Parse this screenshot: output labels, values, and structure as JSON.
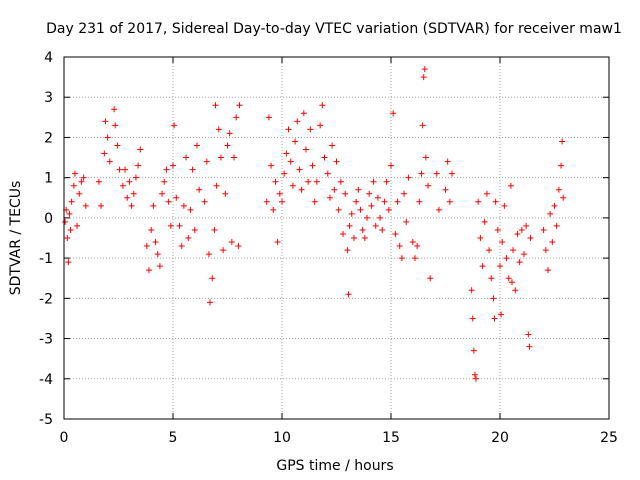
{
  "chart_data": {
    "type": "scatter",
    "title": "Day 231 of 2017, Sidereal Day-to-day VTEC variation (SDTVAR) for receiver maw1",
    "xlabel": "GPS time / hours",
    "ylabel": "SDTVAR / TECUs",
    "xlim": [
      0,
      25
    ],
    "ylim": [
      -5,
      4
    ],
    "xticks": [
      "0",
      "5",
      "10",
      "15",
      "20",
      "25"
    ],
    "yticks": [
      "4",
      "3",
      "2",
      "1",
      "0",
      "-1",
      "-2",
      "-3",
      "-4",
      "-5"
    ],
    "grid": true,
    "marker": "+",
    "series": [
      {
        "name": "SDTVAR",
        "color": "#ff0000",
        "points": [
          [
            0.05,
            -0.1
          ],
          [
            0.1,
            0.2
          ],
          [
            0.15,
            -0.5
          ],
          [
            0.2,
            -1.1
          ],
          [
            0.25,
            0.1
          ],
          [
            0.3,
            -0.3
          ],
          [
            0.35,
            0.4
          ],
          [
            0.45,
            0.8
          ],
          [
            0.5,
            1.1
          ],
          [
            0.6,
            -0.2
          ],
          [
            0.7,
            0.6
          ],
          [
            0.8,
            0.9
          ],
          [
            0.9,
            1.0
          ],
          [
            1.0,
            0.3
          ],
          [
            1.6,
            0.9
          ],
          [
            1.7,
            0.3
          ],
          [
            1.85,
            1.6
          ],
          [
            1.9,
            2.4
          ],
          [
            2.0,
            2.0
          ],
          [
            2.1,
            1.4
          ],
          [
            2.3,
            2.7
          ],
          [
            2.35,
            2.3
          ],
          [
            2.45,
            1.8
          ],
          [
            2.55,
            1.2
          ],
          [
            2.7,
            0.8
          ],
          [
            2.8,
            1.2
          ],
          [
            2.9,
            0.5
          ],
          [
            3.0,
            0.9
          ],
          [
            3.1,
            0.3
          ],
          [
            3.2,
            0.6
          ],
          [
            3.3,
            1.0
          ],
          [
            3.4,
            1.3
          ],
          [
            3.5,
            1.7
          ],
          [
            3.8,
            -0.7
          ],
          [
            3.9,
            -1.3
          ],
          [
            4.0,
            -0.3
          ],
          [
            4.1,
            0.3
          ],
          [
            4.2,
            -0.6
          ],
          [
            4.3,
            -0.9
          ],
          [
            4.4,
            -1.2
          ],
          [
            4.5,
            0.6
          ],
          [
            4.6,
            0.9
          ],
          [
            4.7,
            1.2
          ],
          [
            4.8,
            0.4
          ],
          [
            4.9,
            -0.2
          ],
          [
            5.0,
            1.3
          ],
          [
            5.05,
            2.3
          ],
          [
            5.15,
            0.5
          ],
          [
            5.3,
            -0.2
          ],
          [
            5.4,
            -0.7
          ],
          [
            5.5,
            0.3
          ],
          [
            5.6,
            1.5
          ],
          [
            5.7,
            -0.5
          ],
          [
            5.8,
            0.2
          ],
          [
            5.9,
            1.2
          ],
          [
            6.0,
            -0.3
          ],
          [
            6.1,
            1.8
          ],
          [
            6.2,
            0.7
          ],
          [
            6.45,
            0.4
          ],
          [
            6.55,
            1.4
          ],
          [
            6.65,
            -0.9
          ],
          [
            6.7,
            -2.1
          ],
          [
            6.8,
            -1.5
          ],
          [
            6.9,
            -0.3
          ],
          [
            6.95,
            2.8
          ],
          [
            7.0,
            0.8
          ],
          [
            7.1,
            2.2
          ],
          [
            7.2,
            1.5
          ],
          [
            7.3,
            -0.8
          ],
          [
            7.4,
            0.6
          ],
          [
            7.5,
            1.8
          ],
          [
            7.6,
            2.1
          ],
          [
            7.7,
            -0.6
          ],
          [
            7.8,
            1.5
          ],
          [
            7.9,
            2.5
          ],
          [
            8.0,
            -0.7
          ],
          [
            8.05,
            2.8
          ],
          [
            9.3,
            0.4
          ],
          [
            9.4,
            2.5
          ],
          [
            9.5,
            1.3
          ],
          [
            9.6,
            0.2
          ],
          [
            9.7,
            0.9
          ],
          [
            9.8,
            -0.6
          ],
          [
            9.9,
            0.6
          ],
          [
            10.0,
            0.4
          ],
          [
            10.1,
            1.1
          ],
          [
            10.2,
            1.6
          ],
          [
            10.3,
            2.2
          ],
          [
            10.4,
            1.4
          ],
          [
            10.5,
            0.8
          ],
          [
            10.6,
            1.9
          ],
          [
            10.7,
            2.4
          ],
          [
            10.8,
            1.2
          ],
          [
            10.9,
            0.7
          ],
          [
            11.0,
            2.6
          ],
          [
            11.1,
            1.7
          ],
          [
            11.2,
            0.9
          ],
          [
            11.3,
            2.2
          ],
          [
            11.4,
            1.3
          ],
          [
            11.5,
            0.4
          ],
          [
            11.6,
            0.9
          ],
          [
            11.75,
            2.3
          ],
          [
            11.85,
            2.8
          ],
          [
            11.95,
            1.5
          ],
          [
            12.1,
            1.1
          ],
          [
            12.2,
            0.5
          ],
          [
            12.3,
            1.8
          ],
          [
            12.4,
            0.7
          ],
          [
            12.5,
            1.4
          ],
          [
            12.6,
            0.2
          ],
          [
            12.7,
            0.9
          ],
          [
            12.8,
            -0.4
          ],
          [
            12.9,
            0.6
          ],
          [
            13.0,
            -0.8
          ],
          [
            13.05,
            -1.9
          ],
          [
            13.1,
            -0.2
          ],
          [
            13.2,
            0.1
          ],
          [
            13.3,
            -0.5
          ],
          [
            13.4,
            0.4
          ],
          [
            13.5,
            0.7
          ],
          [
            13.6,
            0.2
          ],
          [
            13.7,
            -0.3
          ],
          [
            13.8,
            -0.5
          ],
          [
            13.9,
            0.0
          ],
          [
            14.0,
            0.6
          ],
          [
            14.1,
            0.3
          ],
          [
            14.2,
            0.9
          ],
          [
            14.3,
            -0.2
          ],
          [
            14.4,
            0.5
          ],
          [
            14.5,
            0.0
          ],
          [
            14.6,
            -0.3
          ],
          [
            14.7,
            0.4
          ],
          [
            14.8,
            0.9
          ],
          [
            14.9,
            0.2
          ],
          [
            15.0,
            1.3
          ],
          [
            15.1,
            2.6
          ],
          [
            15.2,
            -0.4
          ],
          [
            15.3,
            0.4
          ],
          [
            15.4,
            -0.7
          ],
          [
            15.5,
            -1.0
          ],
          [
            15.6,
            0.6
          ],
          [
            15.7,
            -0.1
          ],
          [
            15.8,
            1.0
          ],
          [
            16.0,
            -0.6
          ],
          [
            16.1,
            -1.0
          ],
          [
            16.2,
            -0.7
          ],
          [
            16.3,
            0.4
          ],
          [
            16.4,
            1.1
          ],
          [
            16.45,
            2.3
          ],
          [
            16.5,
            3.5
          ],
          [
            16.55,
            3.7
          ],
          [
            16.6,
            1.5
          ],
          [
            16.7,
            0.8
          ],
          [
            16.8,
            -1.5
          ],
          [
            17.1,
            1.1
          ],
          [
            17.2,
            0.2
          ],
          [
            17.5,
            0.7
          ],
          [
            17.6,
            1.4
          ],
          [
            17.7,
            0.4
          ],
          [
            17.8,
            1.1
          ],
          [
            18.7,
            -1.8
          ],
          [
            18.75,
            -2.5
          ],
          [
            18.8,
            -3.3
          ],
          [
            18.85,
            -3.9
          ],
          [
            18.9,
            -4.0
          ],
          [
            19.0,
            0.4
          ],
          [
            19.1,
            -0.5
          ],
          [
            19.2,
            -1.2
          ],
          [
            19.3,
            -0.1
          ],
          [
            19.4,
            0.6
          ],
          [
            19.5,
            -0.8
          ],
          [
            19.6,
            -1.5
          ],
          [
            19.7,
            -2.0
          ],
          [
            19.75,
            -2.5
          ],
          [
            19.8,
            0.4
          ],
          [
            19.9,
            -0.3
          ],
          [
            20.0,
            -1.2
          ],
          [
            20.05,
            -2.4
          ],
          [
            20.1,
            -0.6
          ],
          [
            20.2,
            0.3
          ],
          [
            20.3,
            -1.0
          ],
          [
            20.4,
            -1.5
          ],
          [
            20.5,
            0.8
          ],
          [
            20.55,
            -1.6
          ],
          [
            20.6,
            -0.8
          ],
          [
            20.7,
            -1.8
          ],
          [
            20.8,
            -0.4
          ],
          [
            20.9,
            -1.1
          ],
          [
            21.0,
            -0.3
          ],
          [
            21.1,
            -0.9
          ],
          [
            21.2,
            -0.2
          ],
          [
            21.3,
            -2.9
          ],
          [
            21.35,
            -3.2
          ],
          [
            21.4,
            -0.5
          ],
          [
            22.0,
            -0.3
          ],
          [
            22.1,
            -0.8
          ],
          [
            22.2,
            -1.3
          ],
          [
            22.3,
            0.1
          ],
          [
            22.4,
            -0.6
          ],
          [
            22.5,
            0.3
          ],
          [
            22.6,
            -0.2
          ],
          [
            22.7,
            0.7
          ],
          [
            22.8,
            1.3
          ],
          [
            22.85,
            1.9
          ],
          [
            22.9,
            0.5
          ]
        ]
      }
    ]
  }
}
